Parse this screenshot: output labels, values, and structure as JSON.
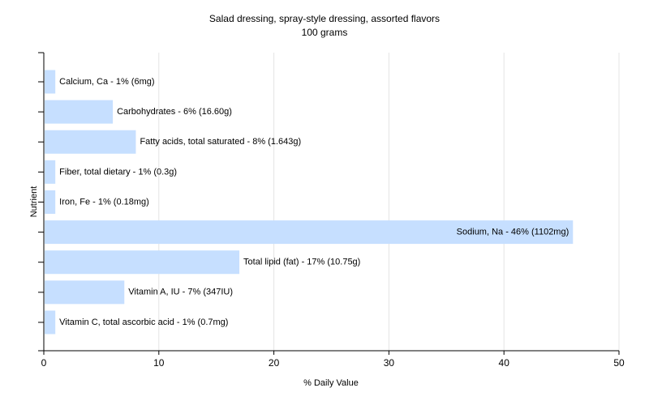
{
  "chart_data": {
    "type": "bar",
    "orientation": "horizontal",
    "title": "Salad dressing, spray-style dressing, assorted flavors",
    "subtitle": "100 grams",
    "xlabel": "% Daily Value",
    "ylabel": "Nutrient",
    "xlim": [
      0,
      50
    ],
    "xticks": [
      0,
      10,
      20,
      30,
      40,
      50
    ],
    "grid": true,
    "bar_color": "#c6dfff",
    "categories": [
      "Calcium, Ca",
      "Carbohydrates",
      "Fatty acids, total saturated",
      "Fiber, total dietary",
      "Iron, Fe",
      "Sodium, Na",
      "Total lipid (fat)",
      "Vitamin A, IU",
      "Vitamin C, total ascorbic acid"
    ],
    "values": [
      1,
      6,
      8,
      1,
      1,
      46,
      17,
      7,
      1
    ],
    "labels": [
      "Calcium, Ca - 1% (6mg)",
      "Carbohydrates - 6% (16.60g)",
      "Fatty acids, total saturated - 8% (1.643g)",
      "Fiber, total dietary - 1% (0.3g)",
      "Iron, Fe - 1% (0.18mg)",
      "Sodium, Na - 46% (1102mg)",
      "Total lipid (fat) - 17% (10.75g)",
      "Vitamin A, IU - 7% (347IU)",
      "Vitamin C, total ascorbic acid - 1% (0.7mg)"
    ]
  }
}
